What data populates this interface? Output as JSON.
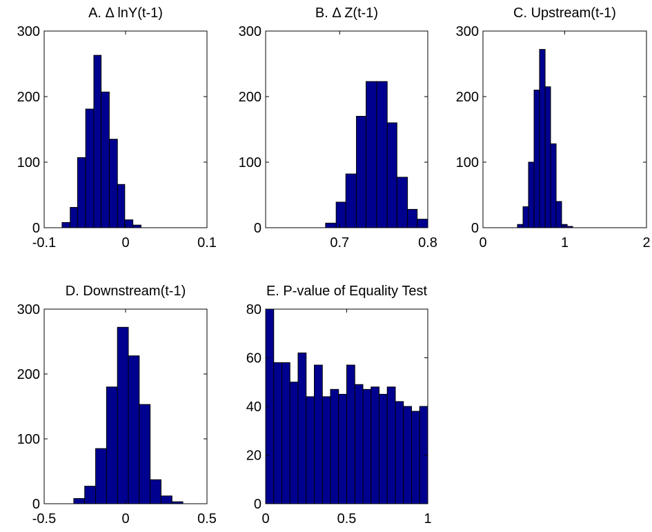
{
  "chart_data": [
    {
      "type": "histogram",
      "title": "A. Δ lnY(t-1)",
      "color": "#00008f",
      "bins": [
        -0.078,
        -0.068,
        -0.059,
        -0.049,
        -0.039,
        -0.03,
        -0.02,
        -0.01,
        -0.001,
        0.009,
        0.019
      ],
      "counts": [
        8,
        31,
        107,
        181,
        263,
        207,
        135,
        66,
        12,
        4
      ],
      "xlim": [
        -0.1,
        0.1
      ],
      "xticks": [
        -0.1,
        0,
        0.1
      ],
      "ylim": [
        0,
        300
      ],
      "yticks": [
        0,
        100,
        200,
        300
      ]
    },
    {
      "type": "histogram",
      "title": "B. Δ Z(t-1)",
      "color": "#00008f",
      "bins": [
        0.684,
        0.696,
        0.707,
        0.719,
        0.73,
        0.742,
        0.754,
        0.765,
        0.777,
        0.788,
        0.8
      ],
      "counts": [
        7,
        39,
        82,
        170,
        223,
        223,
        160,
        77,
        28,
        13
      ],
      "xlim": [
        0.616,
        0.8
      ],
      "xticks": [
        0.7,
        0.8
      ],
      "ylim": [
        0,
        300
      ],
      "yticks": [
        0,
        100,
        200,
        300
      ]
    },
    {
      "type": "histogram",
      "title": "C. Upstream(t-1)",
      "color": "#00008f",
      "bins": [
        0.422,
        0.49,
        0.557,
        0.625,
        0.692,
        0.76,
        0.827,
        0.895,
        0.962,
        1.03,
        1.097
      ],
      "counts": [
        5,
        32,
        100,
        210,
        272,
        215,
        128,
        40,
        5,
        2
      ],
      "xlim": [
        0,
        2
      ],
      "xticks": [
        0,
        1,
        2
      ],
      "ylim": [
        0,
        300
      ],
      "yticks": [
        0,
        100,
        200,
        300
      ]
    },
    {
      "type": "histogram",
      "title": "D. Downstream(t-1)",
      "color": "#00008f",
      "bins": [
        -0.318,
        -0.251,
        -0.184,
        -0.117,
        -0.05,
        0.017,
        0.084,
        0.151,
        0.218,
        0.285,
        0.352
      ],
      "counts": [
        8,
        27,
        85,
        180,
        272,
        228,
        153,
        37,
        12,
        3
      ],
      "xlim": [
        -0.5,
        0.5
      ],
      "xticks": [
        -0.5,
        0,
        0.5
      ],
      "ylim": [
        0,
        300
      ],
      "yticks": [
        0,
        100,
        200,
        300
      ]
    },
    {
      "type": "histogram",
      "title": "E. P-value of Equality Test",
      "color": "#00008f",
      "bins": [
        0,
        0.05,
        0.1,
        0.15,
        0.2,
        0.25,
        0.3,
        0.35,
        0.4,
        0.45,
        0.5,
        0.55,
        0.6,
        0.65,
        0.7,
        0.75,
        0.8,
        0.85,
        0.9,
        0.95,
        1
      ],
      "counts": [
        80,
        58,
        58,
        50,
        62,
        44,
        57,
        44,
        47,
        45,
        57,
        49,
        47,
        48,
        45,
        48,
        42,
        40,
        38,
        40
      ],
      "xlim": [
        0,
        1
      ],
      "xticks": [
        0,
        0.5,
        1
      ],
      "ylim": [
        0,
        80
      ],
      "yticks": [
        0,
        20,
        40,
        60,
        80
      ]
    }
  ]
}
